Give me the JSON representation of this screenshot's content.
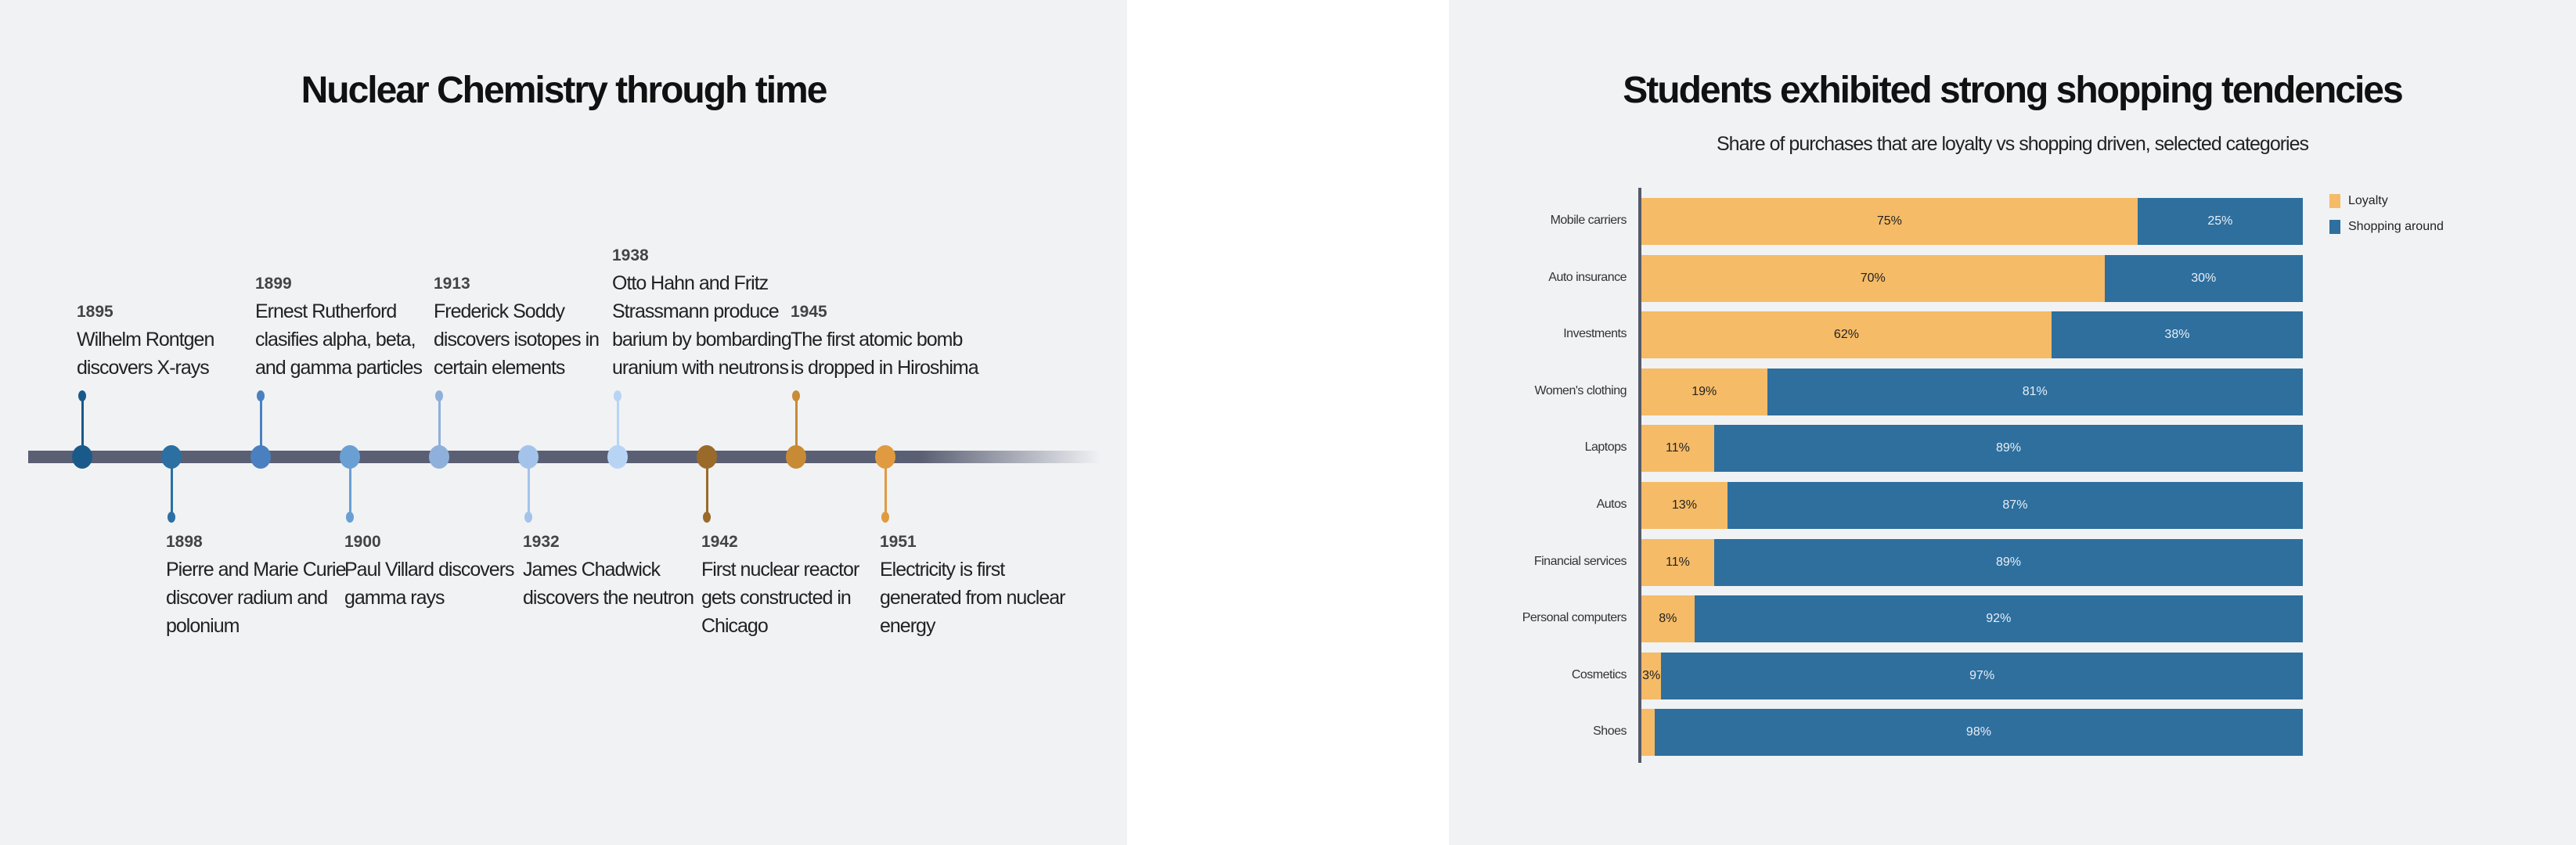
{
  "timeline": {
    "title": "Nuclear Chemistry through time",
    "events": [
      {
        "year": "1895",
        "text": "Wilhelm Rontgen discovers X-rays",
        "position": "top",
        "color": "#1a5a8a"
      },
      {
        "year": "1898",
        "text": "Pierre and Marie Curie discover radium and polonium",
        "position": "bottom",
        "color": "#2b6fa3"
      },
      {
        "year": "1899",
        "text": "Ernest Rutherford clasifies alpha, beta, and gamma particles",
        "position": "top",
        "color": "#4a80c0"
      },
      {
        "year": "1900",
        "text": "Paul Villard discovers gamma rays",
        "position": "bottom",
        "color": "#6a9fd4"
      },
      {
        "year": "1913",
        "text": "Frederick Soddy discovers isotopes in certain elements",
        "position": "top",
        "color": "#8fb0da"
      },
      {
        "year": "1932",
        "text": "James Chadwick discovers the neutron",
        "position": "bottom",
        "color": "#a3c3ea"
      },
      {
        "year": "1938",
        "text": "Otto Hahn and Fritz Strassmann produce barium by bombarding uranium with neutrons",
        "position": "top",
        "color": "#b8d4f5"
      },
      {
        "year": "1942",
        "text": "First nuclear reactor gets constructed in Chicago",
        "position": "bottom",
        "color": "#9a6a2a"
      },
      {
        "year": "1945",
        "text": "The first atomic bomb is dropped in Hiroshima",
        "position": "top",
        "color": "#c88a35"
      },
      {
        "year": "1951",
        "text": "Electricity is first generated from nuclear energy",
        "position": "bottom",
        "color": "#e09a40"
      }
    ]
  },
  "chart_data": {
    "type": "bar",
    "stacked": true,
    "orientation": "horizontal",
    "title": "Students exhibited strong shopping tendencies",
    "subtitle": "Share of purchases that are loyalty vs shopping driven, selected categories",
    "categories": [
      "Mobile carriers",
      "Auto insurance",
      "Investments",
      "Women's clothing",
      "Laptops",
      "Autos",
      "Financial services",
      "Personal computers",
      "Cosmetics",
      "Shoes"
    ],
    "series": [
      {
        "name": "Loyalty",
        "color": "#f5bb67",
        "values": [
          75,
          70,
          62,
          19,
          11,
          13,
          11,
          8,
          3,
          2
        ],
        "labels": [
          "75%",
          "70%",
          "62%",
          "19%",
          "11%",
          "13%",
          "11%",
          "8%",
          "3%",
          ""
        ]
      },
      {
        "name": "Shopping around",
        "color": "#2e6f9e",
        "values": [
          25,
          30,
          38,
          81,
          89,
          87,
          89,
          92,
          97,
          98
        ],
        "labels": [
          "25%",
          "30%",
          "38%",
          "81%",
          "89%",
          "87%",
          "89%",
          "92%",
          "97%",
          "98%"
        ]
      }
    ],
    "xlim": [
      0,
      100
    ],
    "legend": "top-right"
  }
}
